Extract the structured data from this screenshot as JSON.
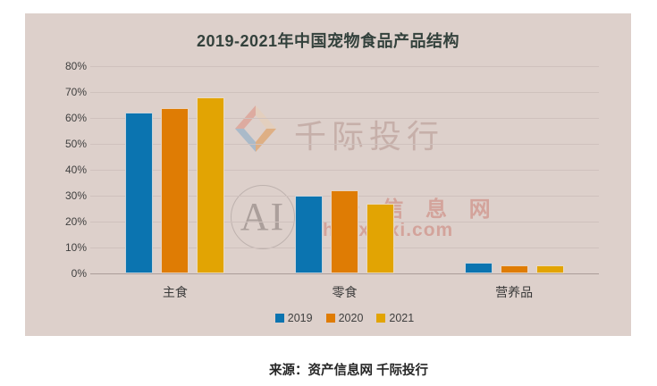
{
  "title": "2019-2021年中国宠物食品产品结构",
  "source_note": "来源：资产信息网 千际投行",
  "watermarks": {
    "brand_text": "千际投行",
    "ai_text": "AI",
    "site_cn": "资 产 信 息 网",
    "site_url": "zichanxinxi.com"
  },
  "colors": {
    "panel_background": "#ddd0cb",
    "page_background": "#ffffff",
    "gridline": "#cfc1bd",
    "axis_line": "#ab9d99",
    "title_text": "#33413c",
    "axis_text": "#3f3f3f",
    "series_2019": "#0b74b0",
    "series_2020": "#df7c04",
    "series_2021": "#e2a403",
    "watermark_red": "rgba(198,95,82,0.40)"
  },
  "chart_data": {
    "type": "bar",
    "title": "2019-2021年中国宠物食品产品结构",
    "categories": [
      "主食",
      "零食",
      "营养品"
    ],
    "series": [
      {
        "name": "2019",
        "color": "#0b74b0",
        "values": [
          62,
          30,
          4
        ]
      },
      {
        "name": "2020",
        "color": "#df7c04",
        "values": [
          64,
          32,
          3
        ]
      },
      {
        "name": "2021",
        "color": "#e2a403",
        "values": [
          68,
          27,
          3
        ]
      }
    ],
    "xlabel": "",
    "ylabel": "",
    "ylim": [
      0,
      80
    ],
    "ytick_labels": [
      "0%",
      "10%",
      "20%",
      "30%",
      "40%",
      "50%",
      "60%",
      "70%",
      "80%"
    ],
    "grid": true,
    "legend_position": "bottom"
  }
}
